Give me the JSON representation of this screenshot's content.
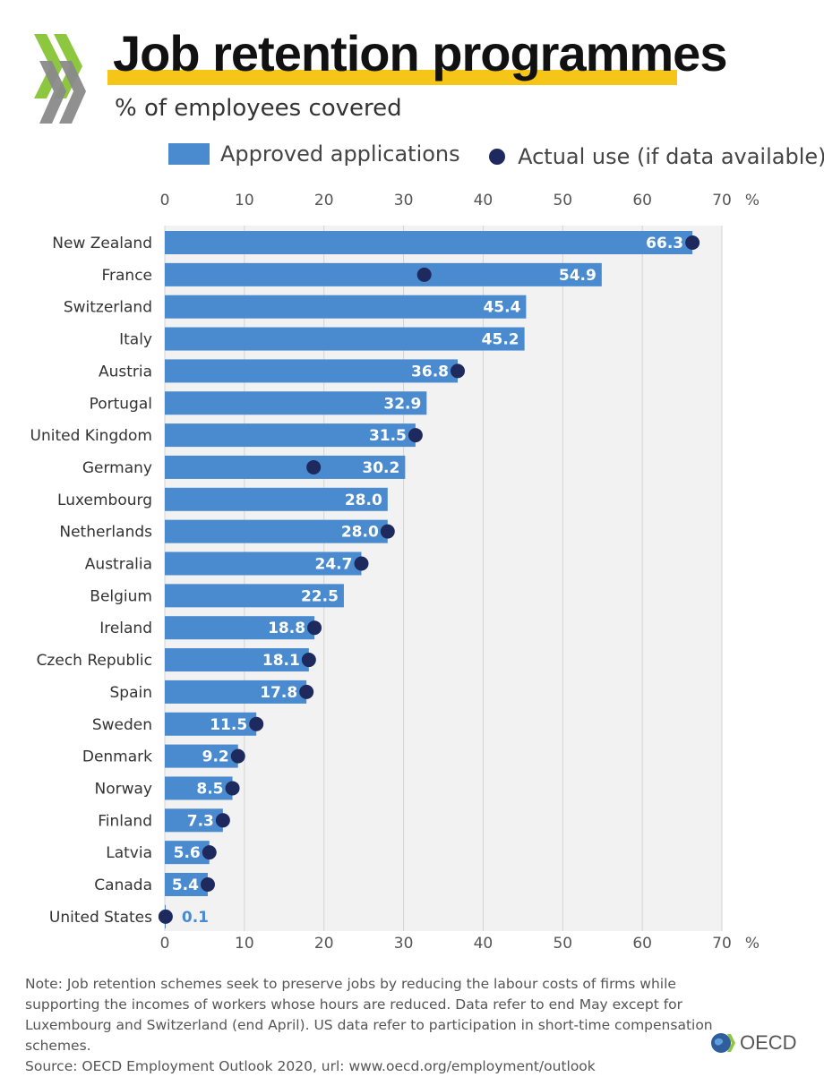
{
  "header": {
    "title": "Job retention programmes",
    "subtitle": "% of employees covered"
  },
  "legend": {
    "bar_label": "Approved applications",
    "dot_label": "Actual use (if data available)"
  },
  "colors": {
    "bar": "#4a8bd0",
    "dot": "#1e2a5e",
    "highlight": "#f5c518",
    "plot_background": "#f2f2f2",
    "chevron_green": "#8dc63f",
    "chevron_grey": "#8a8a8a"
  },
  "chart_data": {
    "type": "bar",
    "orientation": "horizontal",
    "xlim": [
      0,
      70
    ],
    "x_ticks": [
      0,
      10,
      20,
      30,
      40,
      50,
      60,
      70
    ],
    "x_unit": "%",
    "grid": true,
    "legend_position": "top",
    "categories": [
      "New Zealand",
      "France",
      "Switzerland",
      "Italy",
      "Austria",
      "Portugal",
      "United Kingdom",
      "Germany",
      "Luxembourg",
      "Netherlands",
      "Australia",
      "Belgium",
      "Ireland",
      "Czech Republic",
      "Spain",
      "Sweden",
      "Denmark",
      "Norway",
      "Finland",
      "Latvia",
      "Canada",
      "United States"
    ],
    "series": [
      {
        "name": "Approved applications",
        "type": "bar",
        "values": [
          66.3,
          54.9,
          45.4,
          45.2,
          36.8,
          32.9,
          31.5,
          30.2,
          28.0,
          28.0,
          24.7,
          22.5,
          18.8,
          18.1,
          17.8,
          11.5,
          9.2,
          8.5,
          7.3,
          5.6,
          5.4,
          0.1
        ],
        "labels": [
          "66.3",
          "54.9",
          "45.4",
          "45.2",
          "36.8",
          "32.9",
          "31.5",
          "30.2",
          "28.0",
          "28.0",
          "24.7",
          "22.5",
          "18.8",
          "18.1",
          "17.8",
          "11.5",
          "9.2",
          "8.5",
          "7.3",
          "5.6",
          "5.4",
          "0.1"
        ]
      },
      {
        "name": "Actual use (if data available)",
        "type": "dot",
        "values": [
          66.3,
          32.6,
          null,
          null,
          36.8,
          null,
          31.5,
          18.7,
          null,
          28.0,
          24.7,
          null,
          18.8,
          18.1,
          17.8,
          11.5,
          9.2,
          8.5,
          7.3,
          5.6,
          5.4,
          0.1
        ]
      }
    ]
  },
  "note": {
    "text": "Note: Job retention schemes seek to preserve jobs by reducing the labour costs of firms while supporting the incomes of workers whose hours are reduced. Data refer to end May except for Luxembourg and Switzerland (end April). US data refer to participation in short-time compensation schemes.",
    "source": "Source: OECD Employment Outlook 2020, url: www.oecd.org/employment/outlook"
  },
  "logo": {
    "text": "OECD"
  }
}
